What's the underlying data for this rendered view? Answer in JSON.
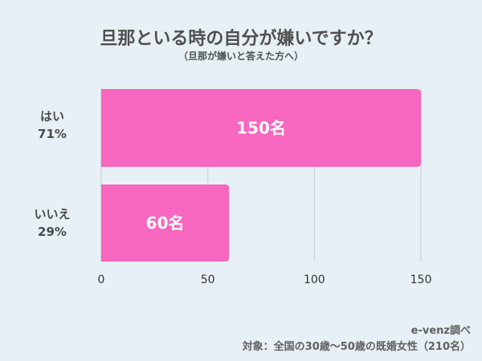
{
  "chart_data": {
    "type": "bar",
    "orientation": "horizontal",
    "title": "旦那といる時の自分が嫌いですか？",
    "subtitle": "（旦那が嫌いと答えた方へ）",
    "categories": [
      "はい",
      "いいえ"
    ],
    "category_percents": [
      "71%",
      "29%"
    ],
    "values": [
      150,
      60
    ],
    "data_labels": [
      "150名",
      "60名"
    ],
    "xlim": [
      0,
      150
    ],
    "xticks": [
      "0",
      "50",
      "100",
      "150"
    ],
    "grid": true,
    "bar_color": "#f766bf"
  },
  "footer": {
    "source": "e-venz調べ",
    "target": "対象：全国の30歳〜50歳の既婚女性（210名）"
  }
}
